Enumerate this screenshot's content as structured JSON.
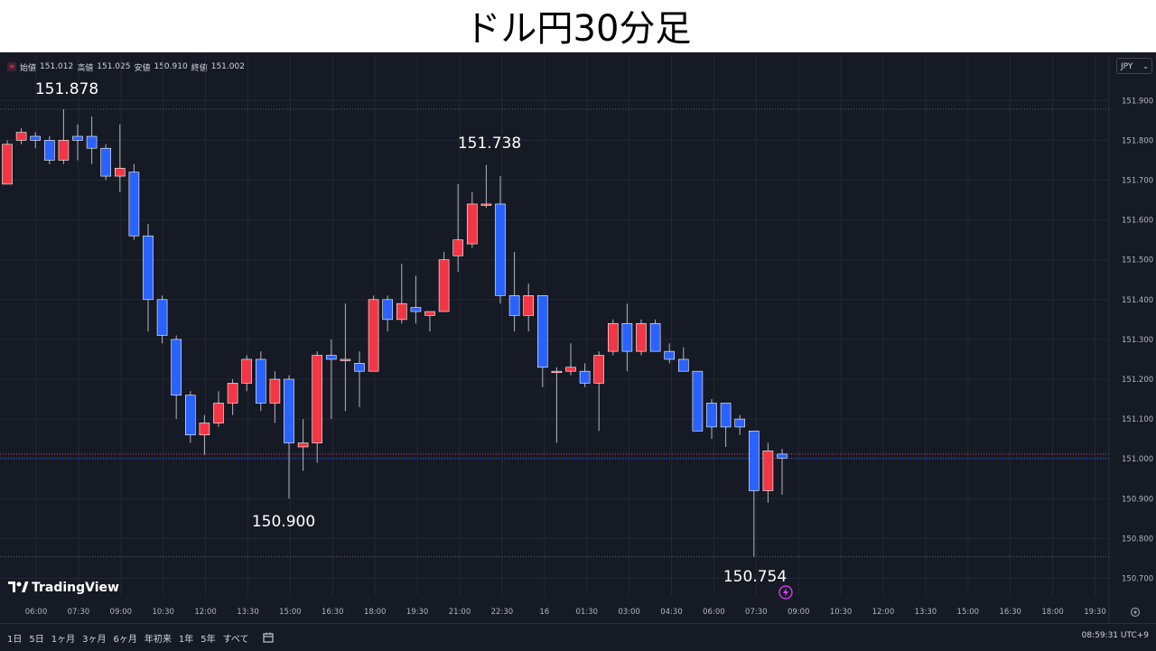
{
  "page": {
    "title": "ドル円30分足"
  },
  "header": {
    "menu_icon": "hamburger-icon",
    "ohlc": {
      "open_label": "始値",
      "open": "151.012",
      "high_label": "高値",
      "high": "151.025",
      "low_label": "安値",
      "low": "150.910",
      "close_label": "終値",
      "close": "151.002"
    },
    "currency": "JPY"
  },
  "toolbar": {
    "ranges": [
      "1日",
      "5日",
      "1ヶ月",
      "3ヶ月",
      "6ヶ月",
      "年初来",
      "1年",
      "5年",
      "すべて"
    ],
    "date_range_icon": "calendar-range-icon",
    "clock": "08:59:31 UTC+9"
  },
  "brand": {
    "name": "TradingView",
    "icon": "tradingview-logo"
  },
  "colors": {
    "background": "#161a25",
    "up": "#f23645",
    "down": "#2962ff",
    "grid": "#232733",
    "text": "#b2b5be",
    "annotation": "#ffffff"
  },
  "chart_data": {
    "type": "candlestick",
    "y_ticks": [
      "151.900",
      "151.800",
      "151.700",
      "151.600",
      "151.500",
      "151.400",
      "151.300",
      "151.200",
      "151.100",
      "151.000",
      "150.900",
      "150.800",
      "150.700"
    ],
    "ylim": [
      150.67,
      151.96
    ],
    "x_ticks": [
      "06:00",
      "07:30",
      "09:00",
      "10:30",
      "12:00",
      "13:30",
      "15:00",
      "16:30",
      "18:00",
      "19:30",
      "21:00",
      "22:30",
      "16",
      "01:30",
      "03:00",
      "04:30",
      "06:00",
      "07:30",
      "09:00",
      "10:30",
      "12:00",
      "13:30",
      "15:00",
      "16:30",
      "18:00",
      "19:30"
    ],
    "annotations": [
      {
        "text": "151.878",
        "value": 151.878
      },
      {
        "text": "151.738",
        "value": 151.738
      },
      {
        "text": "150.900",
        "value": 150.9
      },
      {
        "text": "150.754",
        "value": 150.754
      }
    ],
    "reference_lines": [
      151.878,
      150.754
    ],
    "price_lines": [
      151.012,
      151.002
    ],
    "candles": [
      {
        "o": 151.69,
        "h": 151.8,
        "l": 151.69,
        "c": 151.79
      },
      {
        "o": 151.8,
        "h": 151.83,
        "l": 151.79,
        "c": 151.82
      },
      {
        "o": 151.81,
        "h": 151.82,
        "l": 151.78,
        "c": 151.8
      },
      {
        "o": 151.8,
        "h": 151.81,
        "l": 151.74,
        "c": 151.75
      },
      {
        "o": 151.75,
        "h": 151.878,
        "l": 151.74,
        "c": 151.8
      },
      {
        "o": 151.81,
        "h": 151.84,
        "l": 151.75,
        "c": 151.8
      },
      {
        "o": 151.81,
        "h": 151.86,
        "l": 151.74,
        "c": 151.78
      },
      {
        "o": 151.78,
        "h": 151.79,
        "l": 151.7,
        "c": 151.71
      },
      {
        "o": 151.71,
        "h": 151.84,
        "l": 151.67,
        "c": 151.73
      },
      {
        "o": 151.72,
        "h": 151.74,
        "l": 151.55,
        "c": 151.56
      },
      {
        "o": 151.56,
        "h": 151.59,
        "l": 151.32,
        "c": 151.4
      },
      {
        "o": 151.4,
        "h": 151.41,
        "l": 151.29,
        "c": 151.31
      },
      {
        "o": 151.3,
        "h": 151.31,
        "l": 151.1,
        "c": 151.16
      },
      {
        "o": 151.16,
        "h": 151.17,
        "l": 151.04,
        "c": 151.06
      },
      {
        "o": 151.06,
        "h": 151.11,
        "l": 151.01,
        "c": 151.09
      },
      {
        "o": 151.09,
        "h": 151.17,
        "l": 151.08,
        "c": 151.14
      },
      {
        "o": 151.14,
        "h": 151.2,
        "l": 151.11,
        "c": 151.19
      },
      {
        "o": 151.19,
        "h": 151.26,
        "l": 151.17,
        "c": 151.25
      },
      {
        "o": 151.25,
        "h": 151.27,
        "l": 151.12,
        "c": 151.14
      },
      {
        "o": 151.14,
        "h": 151.22,
        "l": 151.09,
        "c": 151.2
      },
      {
        "o": 151.2,
        "h": 151.21,
        "l": 150.9,
        "c": 151.04
      },
      {
        "o": 151.03,
        "h": 151.1,
        "l": 150.97,
        "c": 151.04
      },
      {
        "o": 151.04,
        "h": 151.27,
        "l": 150.99,
        "c": 151.26
      },
      {
        "o": 151.26,
        "h": 151.3,
        "l": 151.1,
        "c": 151.25
      },
      {
        "o": 151.25,
        "h": 151.39,
        "l": 151.12,
        "c": 151.25
      },
      {
        "o": 151.24,
        "h": 151.27,
        "l": 151.13,
        "c": 151.22
      },
      {
        "o": 151.22,
        "h": 151.41,
        "l": 151.22,
        "c": 151.4
      },
      {
        "o": 151.4,
        "h": 151.41,
        "l": 151.32,
        "c": 151.35
      },
      {
        "o": 151.35,
        "h": 151.49,
        "l": 151.34,
        "c": 151.39
      },
      {
        "o": 151.38,
        "h": 151.46,
        "l": 151.34,
        "c": 151.37
      },
      {
        "o": 151.36,
        "h": 151.37,
        "l": 151.32,
        "c": 151.37
      },
      {
        "o": 151.37,
        "h": 151.52,
        "l": 151.37,
        "c": 151.5
      },
      {
        "o": 151.51,
        "h": 151.69,
        "l": 151.47,
        "c": 151.55
      },
      {
        "o": 151.54,
        "h": 151.67,
        "l": 151.53,
        "c": 151.64
      },
      {
        "o": 151.64,
        "h": 151.738,
        "l": 151.63,
        "c": 151.64
      },
      {
        "o": 151.64,
        "h": 151.71,
        "l": 151.39,
        "c": 151.41
      },
      {
        "o": 151.41,
        "h": 151.52,
        "l": 151.32,
        "c": 151.36
      },
      {
        "o": 151.36,
        "h": 151.44,
        "l": 151.32,
        "c": 151.41
      },
      {
        "o": 151.41,
        "h": 151.41,
        "l": 151.18,
        "c": 151.23
      },
      {
        "o": 151.22,
        "h": 151.23,
        "l": 151.04,
        "c": 151.22
      },
      {
        "o": 151.22,
        "h": 151.29,
        "l": 151.21,
        "c": 151.23
      },
      {
        "o": 151.22,
        "h": 151.24,
        "l": 151.18,
        "c": 151.19
      },
      {
        "o": 151.19,
        "h": 151.27,
        "l": 151.07,
        "c": 151.26
      },
      {
        "o": 151.27,
        "h": 151.35,
        "l": 151.26,
        "c": 151.34
      },
      {
        "o": 151.34,
        "h": 151.39,
        "l": 151.22,
        "c": 151.27
      },
      {
        "o": 151.27,
        "h": 151.35,
        "l": 151.26,
        "c": 151.34
      },
      {
        "o": 151.34,
        "h": 151.35,
        "l": 151.27,
        "c": 151.27
      },
      {
        "o": 151.27,
        "h": 151.29,
        "l": 151.24,
        "c": 151.25
      },
      {
        "o": 151.25,
        "h": 151.28,
        "l": 151.22,
        "c": 151.22
      },
      {
        "o": 151.22,
        "h": 151.22,
        "l": 151.07,
        "c": 151.07
      },
      {
        "o": 151.14,
        "h": 151.15,
        "l": 151.05,
        "c": 151.08
      },
      {
        "o": 151.14,
        "h": 151.14,
        "l": 151.03,
        "c": 151.08
      },
      {
        "o": 151.1,
        "h": 151.11,
        "l": 151.06,
        "c": 151.08
      },
      {
        "o": 151.07,
        "h": 151.07,
        "l": 150.754,
        "c": 150.92
      },
      {
        "o": 150.92,
        "h": 151.04,
        "l": 150.89,
        "c": 151.02
      },
      {
        "o": 151.012,
        "h": 151.025,
        "l": 150.91,
        "c": 151.002
      }
    ]
  }
}
